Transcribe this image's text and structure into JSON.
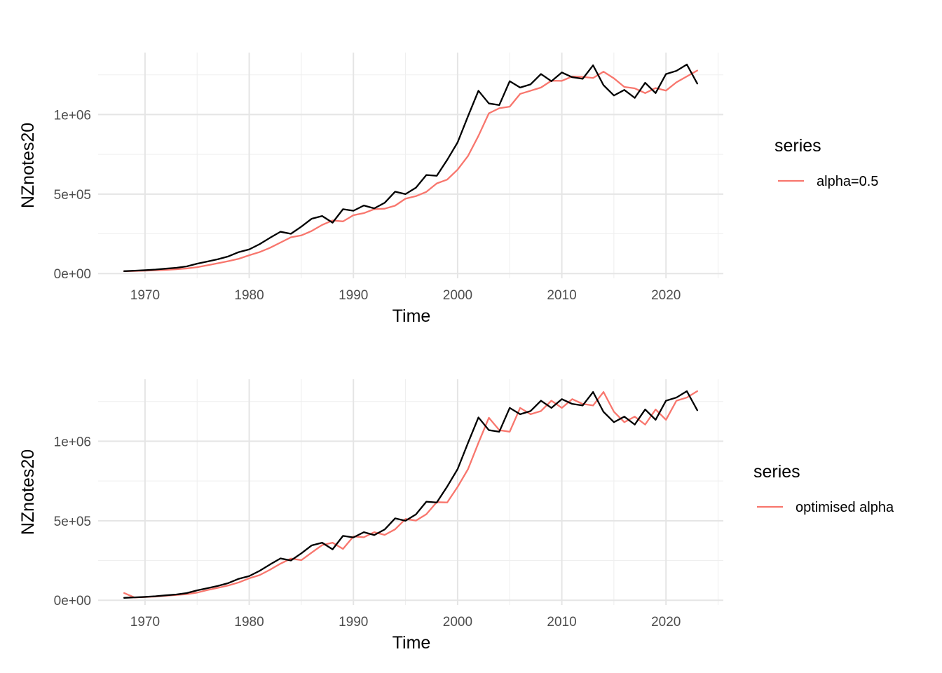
{
  "chart_data": [
    {
      "type": "line",
      "title": "",
      "xlabel": "Time",
      "ylabel": "NZnotes20",
      "xlim": [
        1965.5,
        2025.5
      ],
      "ylim": [
        -30000,
        1390000
      ],
      "x_ticks": [
        1970,
        1980,
        1990,
        2000,
        2010,
        2020
      ],
      "y_ticks": [
        0,
        500000,
        1000000
      ],
      "y_tick_labels": [
        "0e+00",
        "5e+05",
        "1e+06"
      ],
      "grid": true,
      "legend": {
        "title": "series",
        "position": "right"
      },
      "x": [
        1968,
        1969,
        1970,
        1971,
        1972,
        1973,
        1974,
        1975,
        1976,
        1977,
        1978,
        1979,
        1980,
        1981,
        1982,
        1983,
        1984,
        1985,
        1986,
        1987,
        1988,
        1989,
        1990,
        1991,
        1992,
        1993,
        1994,
        1995,
        1996,
        1997,
        1998,
        1999,
        2000,
        2001,
        2002,
        2003,
        2004,
        2005,
        2006,
        2007,
        2008,
        2009,
        2010,
        2011,
        2012,
        2013,
        2014,
        2015,
        2016,
        2017,
        2018,
        2019,
        2020,
        2021,
        2022,
        2023
      ],
      "series": [
        {
          "name": "",
          "color": "#000000",
          "values": [
            15000,
            18000,
            21000,
            25000,
            31000,
            36000,
            45000,
            62000,
            76000,
            90000,
            108000,
            135000,
            152000,
            185000,
            225000,
            263000,
            250000,
            295000,
            345000,
            362000,
            320000,
            405000,
            395000,
            428000,
            410000,
            445000,
            515000,
            500000,
            540000,
            620000,
            615000,
            715000,
            825000,
            990000,
            1150000,
            1070000,
            1060000,
            1210000,
            1170000,
            1190000,
            1255000,
            1210000,
            1265000,
            1235000,
            1225000,
            1310000,
            1185000,
            1120000,
            1155000,
            1105000,
            1200000,
            1135000,
            1255000,
            1275000,
            1315000,
            1195000
          ]
        },
        {
          "name": "alpha=0.5",
          "color": "#f8766d",
          "values": [
            15000,
            16000,
            18000,
            20000,
            23000,
            27000,
            32000,
            40000,
            52000,
            65000,
            78000,
            93000,
            115000,
            135000,
            162000,
            195000,
            228000,
            240000,
            268000,
            306000,
            334000,
            328000,
            367000,
            380000,
            405000,
            408000,
            427000,
            471000,
            487000,
            514000,
            567000,
            591000,
            654000,
            740000,
            866000,
            1008000,
            1040000,
            1050000,
            1130000,
            1150000,
            1170000,
            1213000,
            1212000,
            1240000,
            1237000,
            1230000,
            1270000,
            1228000,
            1174000,
            1165000,
            1135000,
            1167000,
            1151000,
            1203000,
            1240000,
            1277000
          ]
        }
      ]
    },
    {
      "type": "line",
      "title": "",
      "xlabel": "Time",
      "ylabel": "NZnotes20",
      "xlim": [
        1965.5,
        2025.5
      ],
      "ylim": [
        -30000,
        1390000
      ],
      "x_ticks": [
        1970,
        1980,
        1990,
        2000,
        2010,
        2020
      ],
      "y_ticks": [
        0,
        500000,
        1000000
      ],
      "y_tick_labels": [
        "0e+00",
        "5e+05",
        "1e+06"
      ],
      "grid": true,
      "legend": {
        "title": "series",
        "position": "right"
      },
      "x": [
        1968,
        1969,
        1970,
        1971,
        1972,
        1973,
        1974,
        1975,
        1976,
        1977,
        1978,
        1979,
        1980,
        1981,
        1982,
        1983,
        1984,
        1985,
        1986,
        1987,
        1988,
        1989,
        1990,
        1991,
        1992,
        1993,
        1994,
        1995,
        1996,
        1997,
        1998,
        1999,
        2000,
        2001,
        2002,
        2003,
        2004,
        2005,
        2006,
        2007,
        2008,
        2009,
        2010,
        2011,
        2012,
        2013,
        2014,
        2015,
        2016,
        2017,
        2018,
        2019,
        2020,
        2021,
        2022,
        2023
      ],
      "series": [
        {
          "name": "",
          "color": "#000000",
          "values": [
            15000,
            18000,
            21000,
            25000,
            31000,
            36000,
            45000,
            62000,
            76000,
            90000,
            108000,
            135000,
            152000,
            185000,
            225000,
            263000,
            250000,
            295000,
            345000,
            362000,
            320000,
            405000,
            395000,
            428000,
            410000,
            445000,
            515000,
            500000,
            540000,
            620000,
            615000,
            715000,
            825000,
            990000,
            1150000,
            1070000,
            1060000,
            1210000,
            1170000,
            1190000,
            1255000,
            1210000,
            1265000,
            1235000,
            1225000,
            1310000,
            1185000,
            1120000,
            1155000,
            1105000,
            1200000,
            1135000,
            1255000,
            1275000,
            1315000,
            1195000
          ]
        },
        {
          "name": "optimised alpha",
          "color": "#f8766d",
          "values": [
            45000,
            17000,
            20000,
            23000,
            28000,
            33000,
            38000,
            48000,
            64000,
            78000,
            93000,
            112000,
            138000,
            158000,
            192000,
            230000,
            262000,
            252000,
            300000,
            347000,
            362000,
            323000,
            401000,
            396000,
            428000,
            411000,
            446000,
            511000,
            501000,
            541000,
            617000,
            615000,
            713000,
            825000,
            990000,
            1148000,
            1070000,
            1060000,
            1210000,
            1170000,
            1190000,
            1255000,
            1210000,
            1265000,
            1235000,
            1225000,
            1310000,
            1186000,
            1120000,
            1155000,
            1105000,
            1200000,
            1135000,
            1255000,
            1275000,
            1315000
          ]
        }
      ]
    }
  ]
}
